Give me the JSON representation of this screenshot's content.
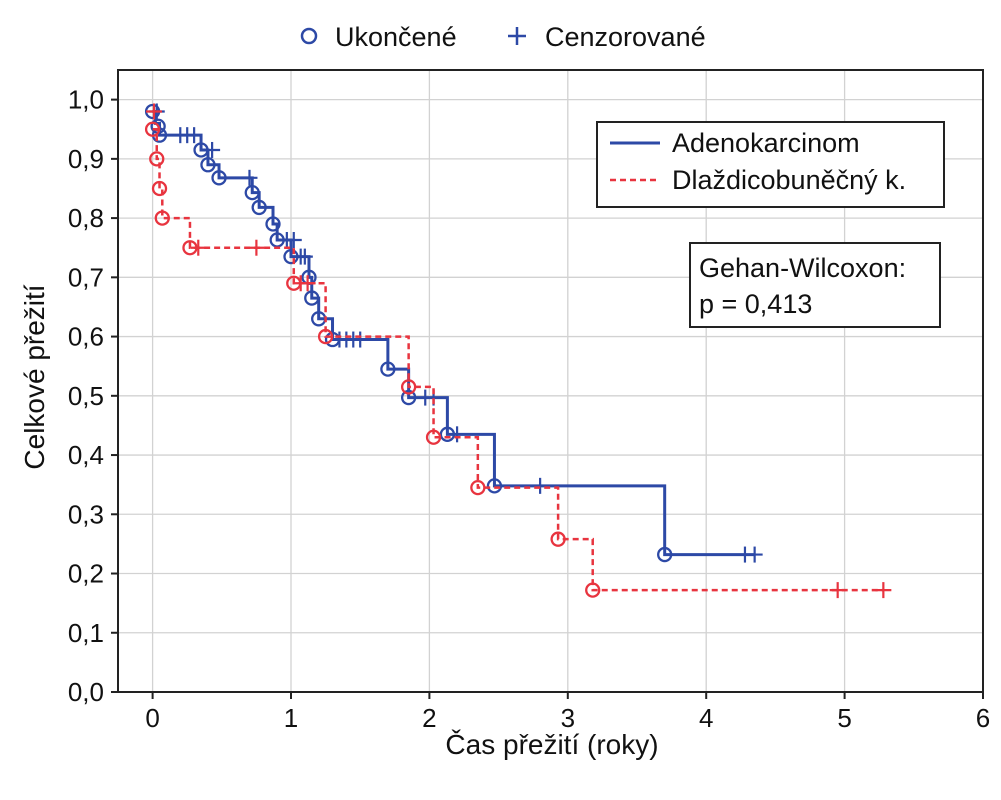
{
  "chart_data": {
    "type": "line",
    "subtype": "kaplan-meier",
    "xlabel": "Čas přežití (roky)",
    "ylabel": "Celkové přežití",
    "xlim": [
      -0.25,
      6
    ],
    "ylim": [
      0,
      1.05
    ],
    "x_ticks": [
      0,
      1,
      2,
      3,
      4,
      5,
      6
    ],
    "y_ticks": [
      0.0,
      0.1,
      0.2,
      0.3,
      0.4,
      0.5,
      0.6,
      0.7,
      0.8,
      0.9,
      1.0
    ],
    "y_tick_labels": [
      "0,0",
      "0,1",
      "0,2",
      "0,3",
      "0,4",
      "0,5",
      "0,6",
      "0,7",
      "0,8",
      "0,9",
      "1,0"
    ],
    "grid": true,
    "marker_legend": [
      {
        "label": "Ukončené",
        "marker": "circle"
      },
      {
        "label": "Cenzorované",
        "marker": "plus"
      }
    ],
    "legend_placement": "top-right",
    "annotation": {
      "line1": "Gehan-Wilcoxon:",
      "line2": "p = 0,413"
    },
    "series": [
      {
        "name": "Adenokarcinom",
        "color": "#2d49a6",
        "dash": "solid",
        "steps": [
          [
            0,
            0.98
          ],
          [
            0.02,
            0.96
          ],
          [
            0.05,
            0.94
          ],
          [
            0.35,
            0.915
          ],
          [
            0.4,
            0.89
          ],
          [
            0.48,
            0.868
          ],
          [
            0.72,
            0.843
          ],
          [
            0.77,
            0.818
          ],
          [
            0.87,
            0.79
          ],
          [
            0.9,
            0.763
          ],
          [
            1.0,
            0.735
          ],
          [
            1.13,
            0.7
          ],
          [
            1.15,
            0.665
          ],
          [
            1.2,
            0.63
          ],
          [
            1.3,
            0.595
          ],
          [
            1.7,
            0.545
          ],
          [
            1.85,
            0.497
          ],
          [
            2.13,
            0.435
          ],
          [
            2.47,
            0.348
          ],
          [
            3.7,
            0.232
          ],
          [
            4.35,
            0.232
          ]
        ],
        "events": [
          [
            0,
            0.98
          ],
          [
            0.04,
            0.955
          ],
          [
            0.05,
            0.94
          ],
          [
            0.35,
            0.915
          ],
          [
            0.4,
            0.89
          ],
          [
            0.48,
            0.868
          ],
          [
            0.72,
            0.843
          ],
          [
            0.77,
            0.818
          ],
          [
            0.87,
            0.79
          ],
          [
            0.9,
            0.763
          ],
          [
            1.0,
            0.735
          ],
          [
            1.13,
            0.7
          ],
          [
            1.15,
            0.665
          ],
          [
            1.2,
            0.63
          ],
          [
            1.3,
            0.595
          ],
          [
            1.7,
            0.545
          ],
          [
            1.85,
            0.497
          ],
          [
            2.13,
            0.435
          ],
          [
            2.47,
            0.348
          ],
          [
            3.7,
            0.232
          ]
        ],
        "censored": [
          [
            0.03,
            0.98
          ],
          [
            0.2,
            0.94
          ],
          [
            0.25,
            0.94
          ],
          [
            0.3,
            0.94
          ],
          [
            0.43,
            0.915
          ],
          [
            0.7,
            0.868
          ],
          [
            0.97,
            0.763
          ],
          [
            1.02,
            0.763
          ],
          [
            1.07,
            0.735
          ],
          [
            1.1,
            0.735
          ],
          [
            1.35,
            0.595
          ],
          [
            1.4,
            0.595
          ],
          [
            1.45,
            0.595
          ],
          [
            1.5,
            0.595
          ],
          [
            1.97,
            0.497
          ],
          [
            2.03,
            0.497
          ],
          [
            2.2,
            0.435
          ],
          [
            2.8,
            0.348
          ],
          [
            4.28,
            0.232
          ],
          [
            4.35,
            0.232
          ]
        ]
      },
      {
        "name": "Dlaždicobuněčný k.",
        "color": "#e8343f",
        "dash": "dashed",
        "steps": [
          [
            0,
            0.95
          ],
          [
            0.03,
            0.9
          ],
          [
            0.05,
            0.85
          ],
          [
            0.07,
            0.8
          ],
          [
            0.27,
            0.75
          ],
          [
            1.02,
            0.69
          ],
          [
            1.25,
            0.6
          ],
          [
            1.85,
            0.515
          ],
          [
            2.03,
            0.43
          ],
          [
            2.35,
            0.345
          ],
          [
            2.93,
            0.258
          ],
          [
            3.18,
            0.172
          ],
          [
            5.28,
            0.172
          ]
        ],
        "events": [
          [
            0,
            0.95
          ],
          [
            0.03,
            0.9
          ],
          [
            0.05,
            0.85
          ],
          [
            0.07,
            0.8
          ],
          [
            0.27,
            0.75
          ],
          [
            1.02,
            0.69
          ],
          [
            1.25,
            0.6
          ],
          [
            1.85,
            0.515
          ],
          [
            2.03,
            0.43
          ],
          [
            2.35,
            0.345
          ],
          [
            2.93,
            0.258
          ],
          [
            3.18,
            0.172
          ]
        ],
        "censored": [
          [
            0.01,
            0.98
          ],
          [
            0.33,
            0.75
          ],
          [
            0.75,
            0.75
          ],
          [
            1.07,
            0.69
          ],
          [
            1.12,
            0.69
          ],
          [
            4.95,
            0.172
          ],
          [
            5.28,
            0.172
          ]
        ]
      }
    ]
  }
}
